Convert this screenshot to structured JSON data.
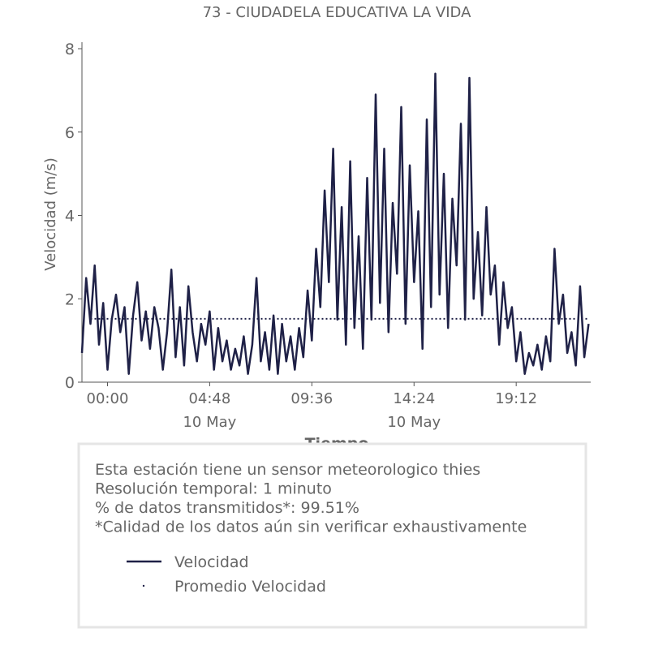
{
  "chart_data": {
    "type": "line",
    "title": "73 - CIUDADELA EDUCATIVA LA VIDA",
    "ylabel": "Velocidad (m/s)",
    "xlabel": "Tiempo",
    "xlim": [
      -1.2,
      22.7
    ],
    "ylim": [
      0,
      8
    ],
    "yticks": [
      0,
      2,
      4,
      6,
      8
    ],
    "xticks": [
      {
        "value": 0,
        "label": "00:00"
      },
      {
        "value": 4.8,
        "label": "04:48"
      },
      {
        "value": 9.6,
        "label": "09:36"
      },
      {
        "value": 14.4,
        "label": "14:24"
      },
      {
        "value": 19.2,
        "label": "19:12"
      }
    ],
    "xtick_dates": [
      {
        "value": 4.8,
        "label": "10 May"
      },
      {
        "value": 14.4,
        "label": "10 May"
      }
    ],
    "series": [
      {
        "name": "Velocidad",
        "color": "#1f2147",
        "style": "solid",
        "x": [
          -1.2,
          -1,
          -0.8,
          -0.6,
          -0.4,
          -0.2,
          0,
          0.2,
          0.4,
          0.6,
          0.8,
          1,
          1.2,
          1.4,
          1.6,
          1.8,
          2,
          2.2,
          2.4,
          2.6,
          2.8,
          3,
          3.2,
          3.4,
          3.6,
          3.8,
          4,
          4.2,
          4.4,
          4.6,
          4.8,
          5,
          5.2,
          5.4,
          5.6,
          5.8,
          6,
          6.2,
          6.4,
          6.6,
          6.8,
          7,
          7.2,
          7.4,
          7.6,
          7.8,
          8,
          8.2,
          8.4,
          8.6,
          8.8,
          9,
          9.2,
          9.4,
          9.6,
          9.8,
          10,
          10.2,
          10.4,
          10.6,
          10.8,
          11,
          11.2,
          11.4,
          11.6,
          11.8,
          12,
          12.2,
          12.4,
          12.6,
          12.8,
          13,
          13.2,
          13.4,
          13.6,
          13.8,
          14,
          14.2,
          14.4,
          14.6,
          14.8,
          15,
          15.2,
          15.4,
          15.6,
          15.8,
          16,
          16.2,
          16.4,
          16.6,
          16.8,
          17,
          17.2,
          17.4,
          17.6,
          17.8,
          18,
          18.2,
          18.4,
          18.6,
          18.8,
          19,
          19.2,
          19.4,
          19.6,
          19.8,
          20,
          20.2,
          20.4,
          20.6,
          20.8,
          21,
          21.2,
          21.4,
          21.6,
          21.8,
          22,
          22.2,
          22.4,
          22.6
        ],
        "values": [
          0.7,
          2.5,
          1.4,
          2.8,
          0.9,
          1.9,
          0.3,
          1.5,
          2.1,
          1.2,
          1.8,
          0.2,
          1.6,
          2.4,
          1.0,
          1.7,
          0.8,
          1.8,
          1.3,
          0.3,
          1.2,
          2.7,
          0.6,
          1.8,
          0.4,
          2.3,
          1.2,
          0.5,
          1.4,
          0.9,
          1.7,
          0.3,
          1.3,
          0.5,
          1.0,
          0.3,
          0.8,
          0.4,
          1.1,
          0.2,
          0.9,
          2.5,
          0.5,
          1.2,
          0.3,
          1.6,
          0.2,
          1.4,
          0.5,
          1.1,
          0.3,
          1.3,
          0.6,
          2.2,
          1.0,
          3.2,
          1.8,
          4.6,
          2.4,
          5.6,
          1.5,
          4.2,
          0.9,
          5.3,
          1.3,
          3.5,
          0.8,
          4.9,
          1.5,
          6.9,
          1.9,
          5.6,
          1.2,
          4.3,
          2.6,
          6.6,
          1.4,
          5.2,
          2.4,
          4.1,
          0.8,
          6.3,
          1.8,
          7.4,
          2.1,
          5.0,
          1.3,
          4.4,
          2.8,
          6.2,
          1.5,
          7.3,
          2.0,
          3.6,
          1.6,
          4.2,
          2.1,
          2.8,
          0.9,
          2.4,
          1.3,
          1.8,
          0.5,
          1.2,
          0.2,
          0.7,
          0.4,
          0.9,
          0.3,
          1.1,
          0.5,
          3.2,
          1.4,
          2.1,
          0.7,
          1.2,
          0.4,
          2.3,
          0.6,
          1.4
        ]
      },
      {
        "name": "Promedio Velocidad",
        "color": "#1f2147",
        "style": "dotted",
        "x": [
          -0.8,
          22.6
        ],
        "values": [
          1.52,
          1.52
        ]
      }
    ],
    "notes": [
      "Esta estación tiene un sensor meteorologico thies",
      "Resolución temporal: 1 minuto",
      "% de datos transmitidos*: 99.51%",
      "*Calidad de los datos aún sin verificar exhaustivamente"
    ]
  }
}
